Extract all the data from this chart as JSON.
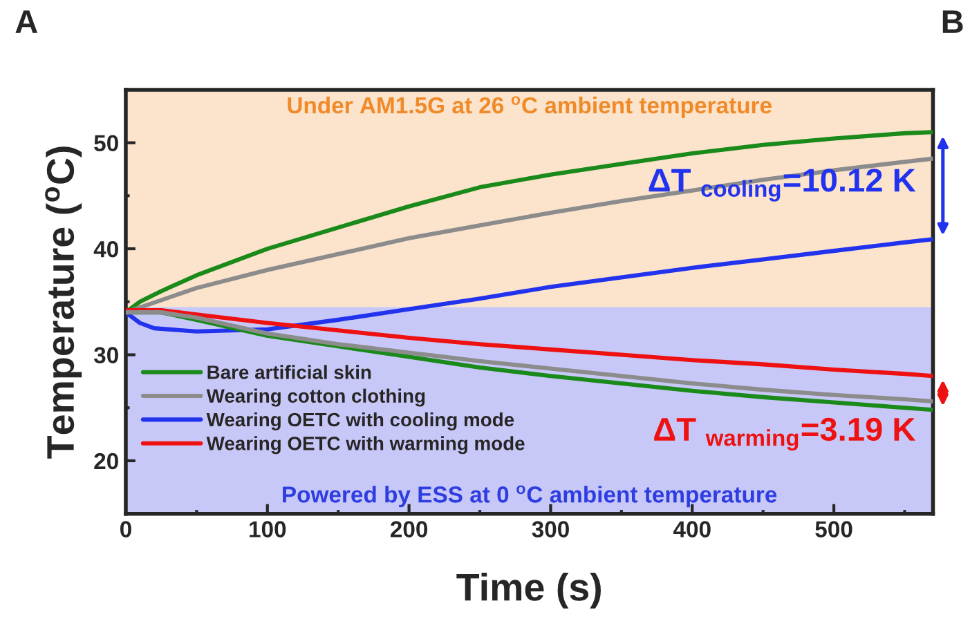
{
  "chart_data": {
    "type": "line",
    "xlabel": "Time (s)",
    "ylabel": "Temperature ($^{o}$C)",
    "xlim": [
      0,
      570
    ],
    "ylim": [
      15,
      55
    ],
    "xticks": [
      0,
      100,
      200,
      300,
      400,
      500
    ],
    "yticks": [
      20,
      30,
      40,
      50
    ],
    "grid": false,
    "legend": "bottom left",
    "marker": "none",
    "line_style": "solid",
    "bands": [
      {
        "axis": "y",
        "from": 34.5,
        "to": 55,
        "label": "Under AM1.5G at 26 $^{o}$C ambient temperature",
        "color": "#fbe3cc"
      },
      {
        "axis": "y",
        "from": 15,
        "to": 34.5,
        "label": "Powered by ESS at 0 $^{o}$C ambient temperature",
        "color": "#c8c8f8"
      }
    ],
    "series": [
      {
        "name": "Bare artificial skin",
        "color": "#1a8a1a",
        "x": [
          0,
          10,
          25,
          50,
          100,
          150,
          200,
          250,
          300,
          350,
          400,
          450,
          500,
          550,
          570
        ],
        "values": [
          34,
          35,
          36,
          37.5,
          40,
          42,
          44,
          45.8,
          47,
          48,
          49,
          49.8,
          50.4,
          50.9,
          51
        ]
      },
      {
        "name": "Wearing cotton clothing",
        "color": "#8c8c8c",
        "x": [
          0,
          50,
          100,
          150,
          200,
          250,
          300,
          350,
          400,
          450,
          500,
          550,
          570
        ],
        "values": [
          34,
          36.3,
          38,
          39.5,
          41,
          42.2,
          43.4,
          44.5,
          45.5,
          46.5,
          47.4,
          48.2,
          48.5
        ]
      },
      {
        "name": "Wearing OETC with cooling mode",
        "color": "#2233ee",
        "x": [
          0,
          10,
          20,
          50,
          100,
          150,
          200,
          250,
          300,
          350,
          400,
          450,
          500,
          550,
          570
        ],
        "values": [
          34,
          33,
          32.5,
          32.2,
          32.4,
          33.3,
          34.3,
          35.3,
          36.4,
          37.3,
          38.2,
          39,
          39.8,
          40.6,
          40.9
        ]
      },
      {
        "name": "Wearing OETC with warming mode",
        "color": "#ee1111",
        "x": [
          0,
          25,
          50,
          100,
          150,
          200,
          250,
          300,
          350,
          400,
          450,
          500,
          550,
          570
        ],
        "values": [
          34.2,
          34.2,
          33.8,
          33,
          32.3,
          31.6,
          31,
          30.5,
          30,
          29.5,
          29.1,
          28.6,
          28.2,
          28
        ]
      },
      {
        "color": "#1a8a1a",
        "x": [
          0,
          25,
          50,
          100,
          150,
          200,
          250,
          300,
          350,
          400,
          450,
          500,
          550,
          570
        ],
        "values": [
          34,
          34,
          33.3,
          31.8,
          30.8,
          29.8,
          28.8,
          28,
          27.3,
          26.6,
          26,
          25.5,
          25,
          24.8
        ]
      },
      {
        "color": "#8c8c8c",
        "x": [
          0,
          25,
          50,
          100,
          150,
          200,
          250,
          300,
          350,
          400,
          450,
          500,
          550,
          570
        ],
        "values": [
          34,
          34,
          33.5,
          32,
          31,
          30.2,
          29.4,
          28.7,
          28,
          27.3,
          26.7,
          26.2,
          25.8,
          25.6
        ]
      }
    ],
    "annotations": [
      "A",
      "B",
      {
        "text": "ΔT $_{cooling}$=10.12 K",
        "x": 570,
        "y": 46
      },
      {
        "text": "ΔT $_{warming}$=3.19 K",
        "x": 570,
        "y": 22.5
      }
    ]
  }
}
